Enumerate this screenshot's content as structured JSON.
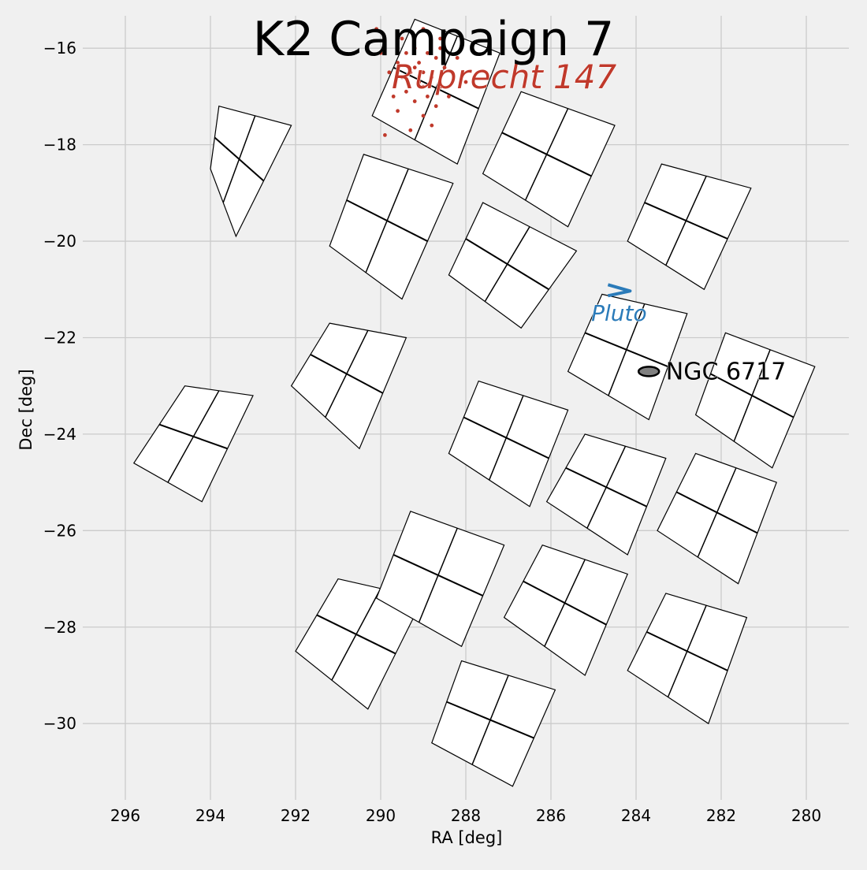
{
  "chart_data": {
    "type": "scatter",
    "title": "K2 Campaign 7",
    "xlabel": "RA [deg]",
    "ylabel": "Dec [deg]",
    "xlim": [
      297,
      279
    ],
    "ylim": [
      -31.5,
      -15
    ],
    "x_ticks": [
      296,
      294,
      292,
      290,
      288,
      286,
      284,
      282,
      280
    ],
    "y_ticks": [
      -16,
      -18,
      -20,
      -22,
      -24,
      -26,
      -28,
      -30
    ],
    "x_tick_labels": [
      "296",
      "294",
      "292",
      "290",
      "288",
      "286",
      "284",
      "282",
      "280"
    ],
    "y_tick_labels": [
      "−16",
      "−18",
      "−20",
      "−22",
      "−24",
      "−26",
      "−28",
      "−30"
    ],
    "grid": true,
    "detector_modules": [
      {
        "corners": [
          [
            294.6,
            -23.0
          ],
          [
            293.0,
            -23.2
          ],
          [
            294.2,
            -25.4
          ],
          [
            295.8,
            -24.6
          ]
        ]
      },
      {
        "corners": [
          [
            293.8,
            -17.2
          ],
          [
            292.1,
            -17.6
          ],
          [
            293.4,
            -19.9
          ],
          [
            294.0,
            -18.5
          ]
        ]
      },
      {
        "corners": [
          [
            291.2,
            -21.7
          ],
          [
            289.4,
            -22.0
          ],
          [
            290.5,
            -24.3
          ],
          [
            292.1,
            -23.0
          ]
        ]
      },
      {
        "corners": [
          [
            290.4,
            -18.2
          ],
          [
            288.3,
            -18.8
          ],
          [
            289.5,
            -21.2
          ],
          [
            291.2,
            -20.1
          ]
        ]
      },
      {
        "corners": [
          [
            291.0,
            -27.0
          ],
          [
            289.0,
            -27.4
          ],
          [
            290.3,
            -29.7
          ],
          [
            292.0,
            -28.5
          ]
        ]
      },
      {
        "corners": [
          [
            289.2,
            -15.4
          ],
          [
            287.2,
            -16.1
          ],
          [
            288.2,
            -18.4
          ],
          [
            290.2,
            -17.4
          ]
        ]
      },
      {
        "corners": [
          [
            287.6,
            -19.2
          ],
          [
            285.4,
            -20.2
          ],
          [
            286.7,
            -21.8
          ],
          [
            288.4,
            -20.7
          ]
        ]
      },
      {
        "corners": [
          [
            287.7,
            -22.9
          ],
          [
            285.6,
            -23.5
          ],
          [
            286.5,
            -25.5
          ],
          [
            288.4,
            -24.4
          ]
        ]
      },
      {
        "corners": [
          [
            289.3,
            -25.6
          ],
          [
            287.1,
            -26.3
          ],
          [
            288.1,
            -28.4
          ],
          [
            290.1,
            -27.4
          ]
        ]
      },
      {
        "corners": [
          [
            288.1,
            -28.7
          ],
          [
            285.9,
            -29.3
          ],
          [
            286.9,
            -31.3
          ],
          [
            288.8,
            -30.4
          ]
        ]
      },
      {
        "corners": [
          [
            286.7,
            -16.9
          ],
          [
            284.5,
            -17.6
          ],
          [
            285.6,
            -19.7
          ],
          [
            287.6,
            -18.6
          ]
        ]
      },
      {
        "corners": [
          [
            284.8,
            -21.1
          ],
          [
            282.8,
            -21.5
          ],
          [
            283.7,
            -23.7
          ],
          [
            285.6,
            -22.7
          ]
        ]
      },
      {
        "corners": [
          [
            285.2,
            -24.0
          ],
          [
            283.3,
            -24.5
          ],
          [
            284.2,
            -26.5
          ],
          [
            286.1,
            -25.4
          ]
        ]
      },
      {
        "corners": [
          [
            286.2,
            -26.3
          ],
          [
            284.2,
            -26.9
          ],
          [
            285.2,
            -29.0
          ],
          [
            287.1,
            -27.8
          ]
        ]
      },
      {
        "corners": [
          [
            283.4,
            -18.4
          ],
          [
            281.3,
            -18.9
          ],
          [
            282.4,
            -21.0
          ],
          [
            284.2,
            -20.0
          ]
        ]
      },
      {
        "corners": [
          [
            282.6,
            -24.4
          ],
          [
            280.7,
            -25.0
          ],
          [
            281.6,
            -27.1
          ],
          [
            283.5,
            -26.0
          ]
        ]
      },
      {
        "corners": [
          [
            283.3,
            -27.3
          ],
          [
            281.4,
            -27.8
          ],
          [
            282.3,
            -30.0
          ],
          [
            284.2,
            -28.9
          ]
        ]
      },
      {
        "corners": [
          [
            281.9,
            -21.9
          ],
          [
            279.8,
            -22.6
          ],
          [
            280.8,
            -24.7
          ],
          [
            282.6,
            -23.6
          ]
        ]
      }
    ],
    "series": [
      {
        "name": "Ruprecht 147",
        "color": "#c0392b",
        "points": [
          [
            289.0,
            -15.6
          ],
          [
            289.5,
            -15.8
          ],
          [
            288.6,
            -15.8
          ],
          [
            289.2,
            -16.0
          ],
          [
            288.9,
            -16.1
          ],
          [
            289.4,
            -16.1
          ],
          [
            288.7,
            -16.2
          ],
          [
            289.1,
            -16.3
          ],
          [
            289.6,
            -16.3
          ],
          [
            288.5,
            -16.4
          ],
          [
            289.0,
            -16.5
          ],
          [
            289.3,
            -16.5
          ],
          [
            288.8,
            -16.6
          ],
          [
            289.5,
            -16.6
          ],
          [
            289.1,
            -16.7
          ],
          [
            288.6,
            -16.8
          ],
          [
            289.4,
            -16.9
          ],
          [
            288.9,
            -17.0
          ],
          [
            289.2,
            -17.1
          ],
          [
            288.7,
            -17.2
          ],
          [
            289.6,
            -17.3
          ],
          [
            289.0,
            -17.4
          ],
          [
            288.8,
            -17.6
          ],
          [
            289.3,
            -17.7
          ],
          [
            290.1,
            -15.6
          ],
          [
            290.0,
            -16.1
          ],
          [
            289.8,
            -16.5
          ],
          [
            288.2,
            -16.2
          ],
          [
            288.0,
            -16.7
          ],
          [
            288.4,
            -17.0
          ],
          [
            289.7,
            -17.0
          ],
          [
            289.9,
            -17.8
          ],
          [
            288.6,
            -16.0
          ],
          [
            289.2,
            -16.4
          ],
          [
            289.0,
            -16.8
          ]
        ]
      }
    ],
    "annotations": [
      {
        "text": "Ruprecht 147",
        "color": "#c0392b",
        "x": 287.1,
        "y": -16.6
      },
      {
        "text": "Pluto",
        "color": "#2b7bb9",
        "x": 284.4,
        "y": -21.5
      },
      {
        "text": "NGC 6717",
        "color": "#000000",
        "x": 283.3,
        "y": -22.7
      }
    ],
    "markers": [
      {
        "name": "Pluto",
        "type": "arrow",
        "x": 284.4,
        "y": -21.0
      },
      {
        "name": "NGC 6717",
        "type": "ellipse",
        "x": 283.7,
        "y": -22.7,
        "fill": "#808080"
      }
    ]
  }
}
